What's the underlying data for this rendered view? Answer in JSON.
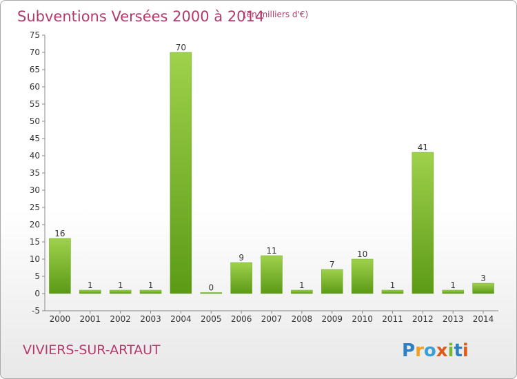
{
  "chart_data": {
    "type": "bar",
    "title": "Subventions Versées 2000 à 2014",
    "subtitle": "(en milliers d'€)",
    "categories": [
      "2000",
      "2001",
      "2002",
      "2003",
      "2004",
      "2005",
      "2006",
      "2007",
      "2008",
      "2009",
      "2010",
      "2011",
      "2012",
      "2013",
      "2014"
    ],
    "values": [
      16,
      1,
      1,
      1,
      70,
      0,
      9,
      11,
      1,
      7,
      10,
      1,
      41,
      1,
      3
    ],
    "ylim": [
      -5,
      75
    ],
    "yticks": [
      -5,
      0,
      5,
      10,
      15,
      20,
      25,
      30,
      35,
      40,
      45,
      50,
      55,
      60,
      65,
      70,
      75
    ],
    "grid": false,
    "xlabel": "",
    "ylabel": "",
    "bar_color": "#7ab832",
    "bar_color_dark": "#5a9a18"
  },
  "commune": "VIVIERS-SUR-ARTAUT",
  "logo": {
    "letters": [
      "P",
      "r",
      "o",
      "x",
      "i",
      "t",
      "i"
    ],
    "colors": [
      "#2d7fc4",
      "#f0a020",
      "#3aa0d8",
      "#e05a1a",
      "#7ab832",
      "#2d7fc4",
      "#e05a1a"
    ]
  }
}
